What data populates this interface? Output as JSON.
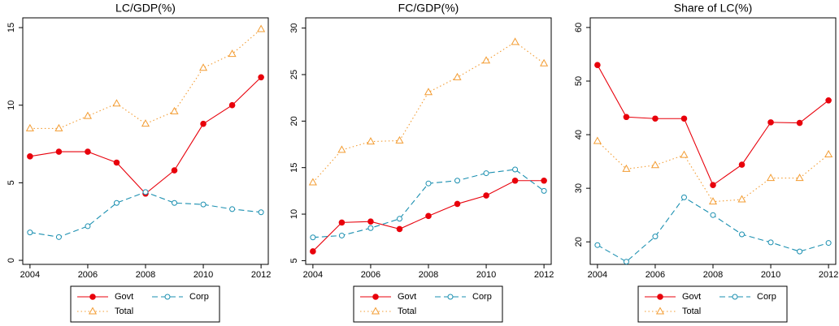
{
  "chart_data": [
    {
      "type": "line",
      "title": "LC/GDP(%)",
      "x": [
        2004,
        2005,
        2006,
        2007,
        2008,
        2009,
        2010,
        2011,
        2012
      ],
      "xlim": [
        2003.75,
        2012.25
      ],
      "xticks": [
        2004,
        2006,
        2008,
        2010,
        2012
      ],
      "ylim": [
        -0.26,
        15.63
      ],
      "yticks": [
        0,
        5,
        10,
        15
      ],
      "legend": "bottom",
      "series": [
        {
          "name": "Govt",
          "color": "#e8000b",
          "style": "solid",
          "marker": "filled-circle",
          "values": [
            6.7,
            7.0,
            7.0,
            6.3,
            4.3,
            5.8,
            8.8,
            10.0,
            11.8
          ]
        },
        {
          "name": "Corp",
          "color": "#1a8fb0",
          "style": "dash",
          "marker": "hollow-circle",
          "values": [
            1.8,
            1.5,
            2.2,
            3.7,
            4.4,
            3.7,
            3.6,
            3.3,
            3.1
          ]
        },
        {
          "name": "Total",
          "color": "#f39c32",
          "style": "dot",
          "marker": "hollow-triangle",
          "values": [
            8.5,
            8.5,
            9.3,
            10.1,
            8.8,
            9.6,
            12.4,
            13.3,
            14.9
          ]
        }
      ]
    },
    {
      "type": "line",
      "title": "FC/GDP(%)",
      "x": [
        2004,
        2005,
        2006,
        2007,
        2008,
        2009,
        2010,
        2011,
        2012
      ],
      "xlim": [
        2003.75,
        2012.25
      ],
      "xticks": [
        2004,
        2006,
        2008,
        2010,
        2012
      ],
      "ylim": [
        4.6,
        31.1
      ],
      "yticks": [
        5,
        10,
        15,
        20,
        25,
        30
      ],
      "legend": "bottom",
      "series": [
        {
          "name": "Govt",
          "color": "#e8000b",
          "style": "solid",
          "marker": "filled-circle",
          "values": [
            6.0,
            9.1,
            9.2,
            8.4,
            9.8,
            11.1,
            12.0,
            13.6,
            13.6
          ]
        },
        {
          "name": "Corp",
          "color": "#1a8fb0",
          "style": "dash",
          "marker": "hollow-circle",
          "values": [
            7.5,
            7.7,
            8.5,
            9.5,
            13.3,
            13.6,
            14.4,
            14.8,
            12.5
          ]
        },
        {
          "name": "Total",
          "color": "#f39c32",
          "style": "dot",
          "marker": "hollow-triangle",
          "values": [
            13.4,
            16.9,
            17.8,
            17.9,
            23.1,
            24.7,
            26.5,
            28.5,
            26.2
          ]
        }
      ]
    },
    {
      "type": "line",
      "title": "Share of LC(%)",
      "x": [
        2004,
        2005,
        2006,
        2007,
        2008,
        2009,
        2010,
        2011,
        2012
      ],
      "xlim": [
        2003.75,
        2012.25
      ],
      "xticks": [
        2004,
        2006,
        2008,
        2010,
        2012
      ],
      "ylim": [
        15.8,
        61.8
      ],
      "yticks": [
        20,
        30,
        40,
        50,
        60
      ],
      "legend": "bottom",
      "series": [
        {
          "name": "Govt",
          "color": "#e8000b",
          "style": "solid",
          "marker": "filled-circle",
          "values": [
            53.0,
            43.3,
            43.0,
            43.0,
            30.6,
            34.4,
            42.3,
            42.2,
            46.4
          ]
        },
        {
          "name": "Corp",
          "color": "#1a8fb0",
          "style": "dash",
          "marker": "hollow-circle",
          "values": [
            19.4,
            16.3,
            21.0,
            28.3,
            25.0,
            21.4,
            19.9,
            18.2,
            19.8
          ]
        },
        {
          "name": "Total",
          "color": "#f39c32",
          "style": "dot",
          "marker": "hollow-triangle",
          "values": [
            38.8,
            33.6,
            34.3,
            36.2,
            27.5,
            27.9,
            31.9,
            31.9,
            36.3
          ]
        }
      ]
    }
  ]
}
